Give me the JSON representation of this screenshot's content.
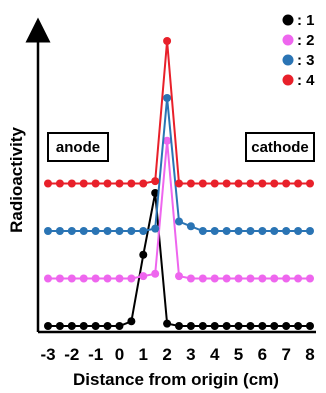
{
  "chart_data": {
    "type": "line",
    "xlabel": "Distance from origin (cm)",
    "ylabel": "Radioactivity",
    "xlim": [
      -3,
      8
    ],
    "x_ticks": [
      "-3",
      "-2",
      "-1",
      "0",
      "1",
      "2",
      "3",
      "4",
      "5",
      "6",
      "7",
      "8"
    ],
    "grid": false,
    "legend_position": "top-right",
    "annotations": [
      "anode",
      "cathode"
    ],
    "y_axis_arrow": true,
    "series": [
      {
        "name": ": 1",
        "color": "#000000",
        "x": [
          -3,
          -2.5,
          -2,
          -1.5,
          -1,
          -0.5,
          0,
          0.5,
          1,
          1.5,
          2,
          2.5,
          3,
          3.5,
          4,
          4.5,
          5,
          5.5,
          6,
          6.5,
          7,
          7.5,
          8
        ],
        "y": [
          0,
          0,
          0,
          0,
          0,
          0,
          0,
          0.1,
          1.5,
          2.8,
          0.05,
          0,
          0,
          0,
          0,
          0,
          0,
          0,
          0,
          0,
          0,
          0,
          0
        ]
      },
      {
        "name": ": 2",
        "color": "#ee66ee",
        "x": [
          -3,
          -2.5,
          -2,
          -1.5,
          -1,
          -0.5,
          0,
          0.5,
          1,
          1.5,
          2,
          2.5,
          3,
          3.5,
          4,
          4.5,
          5,
          5.5,
          6,
          6.5,
          7,
          7.5,
          8
        ],
        "y": [
          1,
          1,
          1,
          1,
          1,
          1,
          1,
          1,
          1.05,
          1.1,
          3.9,
          1.05,
          1,
          1,
          1,
          1,
          1,
          1,
          1,
          1,
          1,
          1,
          1
        ]
      },
      {
        "name": ": 3",
        "color": "#2a74b4",
        "x": [
          -3,
          -2.5,
          -2,
          -1.5,
          -1,
          -0.5,
          0,
          0.5,
          1,
          1.5,
          2,
          2.5,
          3,
          3.5,
          4,
          4.5,
          5,
          5.5,
          6,
          6.5,
          7,
          7.5,
          8
        ],
        "y": [
          2,
          2,
          2,
          2,
          2,
          2,
          2,
          2,
          2,
          2.05,
          4.8,
          2.2,
          2.1,
          2,
          2,
          2,
          2,
          2,
          2,
          2,
          2,
          2,
          2
        ]
      },
      {
        "name": ": 4",
        "color": "#e8202a",
        "x": [
          -3,
          -2.5,
          -2,
          -1.5,
          -1,
          -0.5,
          0,
          0.5,
          1,
          1.5,
          2,
          2.5,
          3,
          3.5,
          4,
          4.5,
          5,
          5.5,
          6,
          6.5,
          7,
          7.5,
          8
        ],
        "y": [
          3,
          3,
          3,
          3,
          3,
          3,
          3,
          3,
          3,
          3.05,
          6,
          3,
          3,
          3,
          3,
          3,
          3,
          3,
          3,
          3,
          3,
          3,
          3
        ]
      }
    ]
  }
}
